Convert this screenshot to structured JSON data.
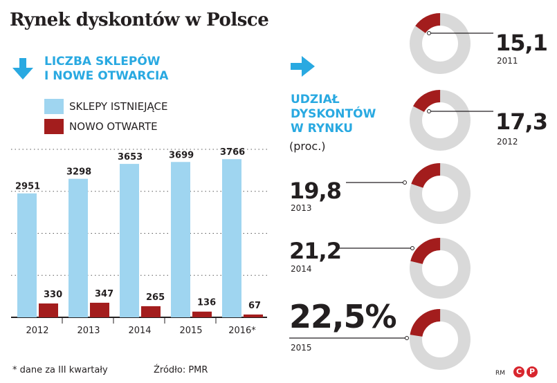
{
  "title": "Rynek dyskontów w Polsce",
  "left_header": {
    "line1": "LICZBA SKLEPÓW",
    "line2": "I NOWE OTWARCIA"
  },
  "right_header": {
    "line1": "UDZIAŁ",
    "line2": "DYSKONTÓW",
    "line3": "W RYNKU",
    "unit": "(proc.)"
  },
  "colors": {
    "existing": "#9fd5f0",
    "new": "#a31d1d",
    "accent": "#29a9e1",
    "ring": "#d9d9d9",
    "share": "#a31d1d"
  },
  "footnote": "* dane za III kwartały",
  "source": "Źródło: PMR",
  "credit": "RM",
  "logo": {
    "left": "C",
    "right": "P"
  },
  "chart_data": [
    {
      "type": "bar",
      "categories": [
        "2012",
        "2013",
        "2014",
        "2015",
        "2016*"
      ],
      "series": [
        {
          "name": "SKLEPY ISTNIEJĄCE",
          "values": [
            2951,
            3298,
            3653,
            3699,
            3766
          ]
        },
        {
          "name": "NOWO OTWARTE",
          "values": [
            330,
            347,
            265,
            136,
            67
          ]
        }
      ],
      "ylim": [
        0,
        4000
      ],
      "grid": true,
      "legend": "top"
    },
    {
      "type": "pie",
      "categories": [
        "2011",
        "2012",
        "2013",
        "2014",
        "2015"
      ],
      "values": [
        15.1,
        17.3,
        19.8,
        21.2,
        22.5
      ],
      "labels": [
        "15,1",
        "17,3",
        "19,8",
        "21,2",
        "22,5%"
      ],
      "ylabel": "(proc.)"
    }
  ]
}
